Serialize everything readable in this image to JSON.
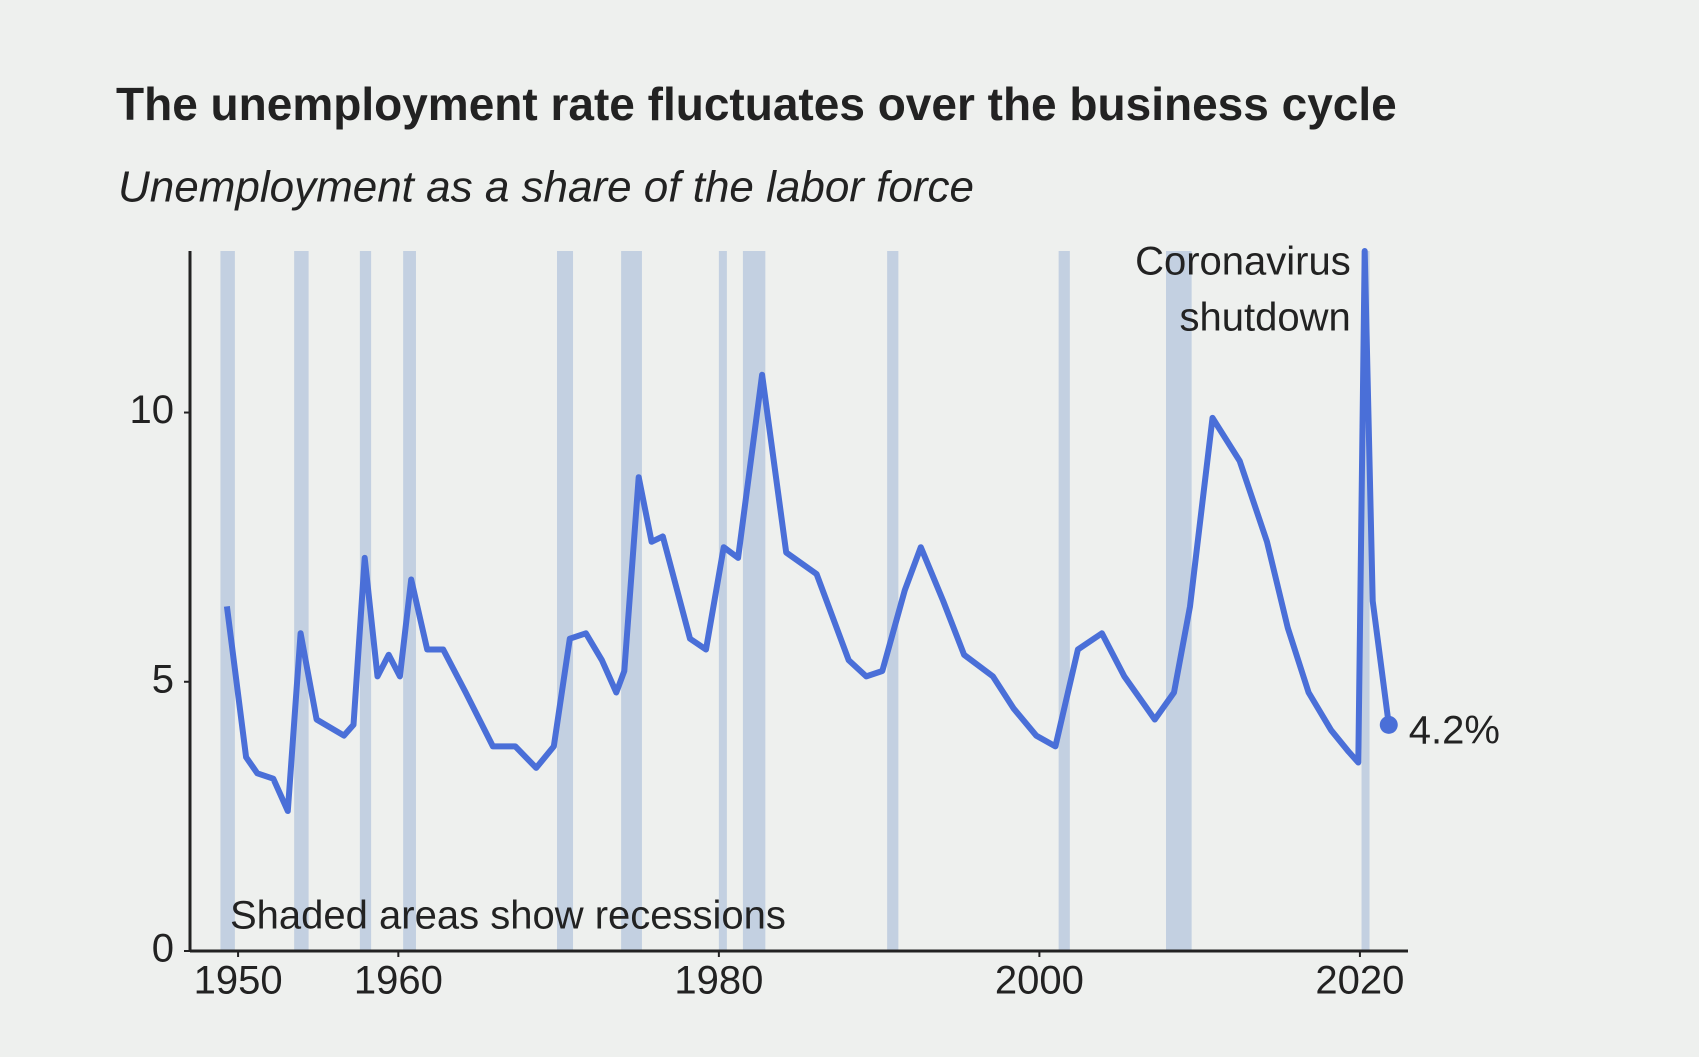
{
  "chart_data": {
    "type": "line",
    "title": "The unemployment rate fluctuates over the business cycle",
    "subtitle": "Unemployment as a share of the labor force",
    "x": [
      1949.3,
      1950.5,
      1951.2,
      1952.2,
      1953.1,
      1953.9,
      1954.9,
      1956.6,
      1957.2,
      1957.9,
      1958.7,
      1959.4,
      1960.1,
      1960.8,
      1961.8,
      1962.8,
      1964.2,
      1965.9,
      1967.3,
      1968.6,
      1969.7,
      1970.7,
      1971.7,
      1972.7,
      1973.6,
      1974.1,
      1975.0,
      1975.8,
      1976.5,
      1978.2,
      1979.2,
      1980.3,
      1981.2,
      1982.7,
      1984.2,
      1986.1,
      1988.1,
      1989.2,
      1990.2,
      1991.6,
      1992.6,
      1994.0,
      1995.3,
      1997.1,
      1998.4,
      1999.8,
      2001.0,
      2002.4,
      2003.9,
      2005.3,
      2007.2,
      2008.4,
      2009.4,
      2010.8,
      2012.5,
      2014.2,
      2015.5,
      2016.8,
      2018.2,
      2019.3,
      2019.9,
      2020.3,
      2020.8,
      2021.8
    ],
    "values": [
      6.4,
      3.6,
      3.3,
      3.2,
      2.6,
      5.9,
      4.3,
      4.0,
      4.2,
      7.3,
      5.1,
      5.5,
      5.1,
      6.9,
      5.6,
      5.6,
      4.8,
      3.8,
      3.8,
      3.4,
      3.8,
      5.8,
      5.9,
      5.4,
      4.8,
      5.2,
      8.8,
      7.6,
      7.7,
      5.8,
      5.6,
      7.5,
      7.3,
      10.7,
      7.4,
      7.0,
      5.4,
      5.1,
      5.2,
      6.7,
      7.5,
      6.5,
      5.5,
      5.1,
      4.5,
      4.0,
      3.8,
      5.6,
      5.9,
      5.1,
      4.3,
      4.8,
      6.4,
      9.9,
      9.1,
      7.6,
      6.0,
      4.8,
      4.1,
      3.7,
      3.5,
      13.0,
      6.5,
      4.2
    ],
    "value_labels": [
      null,
      null,
      null,
      null,
      null,
      null,
      null,
      null,
      null,
      null,
      null,
      null,
      null,
      null,
      null,
      null,
      null,
      null,
      null,
      null,
      null,
      null,
      null,
      null,
      null,
      null,
      null,
      null,
      null,
      null,
      null,
      null,
      null,
      null,
      null,
      null,
      null,
      null,
      null,
      null,
      null,
      null,
      null,
      null,
      null,
      null,
      null,
      null,
      null,
      null,
      null,
      null,
      null,
      null,
      null,
      null,
      null,
      null,
      null,
      null,
      null,
      null,
      null,
      "4.2%"
    ],
    "color": "#4a6fd8",
    "recessions": [
      [
        1948.9,
        1949.8
      ],
      [
        1953.5,
        1954.4
      ],
      [
        1957.6,
        1958.3
      ],
      [
        1960.3,
        1961.1
      ],
      [
        1969.9,
        1970.9
      ],
      [
        1973.9,
        1975.2
      ],
      [
        1980.0,
        1980.5
      ],
      [
        1981.5,
        1982.9
      ],
      [
        1990.5,
        1991.2
      ],
      [
        2001.2,
        2001.9
      ],
      [
        2007.9,
        2009.5
      ],
      [
        2020.1,
        2020.3
      ]
    ],
    "recession_color": "#b4c6dc",
    "recession_note": "Shaded areas show recessions",
    "shutdown_note": [
      "Coronavirus",
      "shutdown"
    ],
    "xlim": [
      1947,
      2023
    ],
    "xticks": [
      1950,
      1960,
      1980,
      2000,
      2020
    ],
    "ylim": [
      0,
      13
    ],
    "yticks": [
      0,
      5,
      10
    ]
  }
}
